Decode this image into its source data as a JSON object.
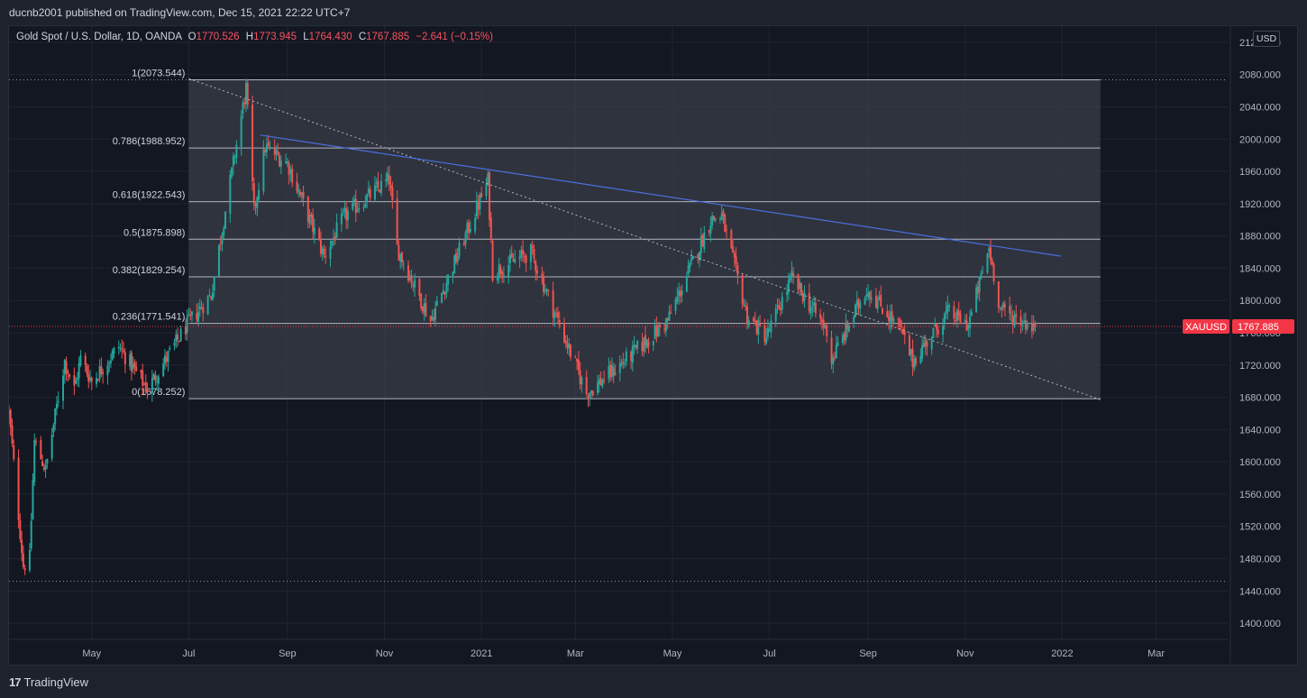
{
  "header": {
    "published_by": "ducnb2001 published on TradingView.com, Dec 15, 2021 22:22 UTC+7"
  },
  "legend": {
    "symbol": "Gold Spot / U.S. Dollar, 1D, OANDA",
    "open_label": "O",
    "open": "1770.526",
    "high_label": "H",
    "high": "1773.945",
    "low_label": "L",
    "low": "1764.430",
    "close_label": "C",
    "close": "1767.885",
    "change": "−2.641 (−0.15%)"
  },
  "price_axis": {
    "currency": "USD",
    "ticker_tag": "XAUUSD",
    "last_price_label": "1767.885"
  },
  "footer": {
    "brand": "TradingView",
    "brand_mark": "17"
  },
  "colors": {
    "background": "#131722",
    "panel": "#1e222d",
    "grid": "#1f2430",
    "up": "#26a69a",
    "down": "#ef5350",
    "trendline": "#4a6fe0",
    "fib_line": "#b2b5be",
    "fib_zone": "#3a3d48",
    "last_price": "#f23645"
  },
  "chart_data": {
    "type": "candlestick",
    "title": "Gold Spot / U.S. Dollar, 1D, OANDA",
    "y_ticks": [
      2120,
      2080,
      2040,
      2000,
      1960,
      1920,
      1880,
      1840,
      1800,
      1760,
      1720,
      1680,
      1640,
      1600,
      1560,
      1520,
      1480,
      1440,
      1400
    ],
    "y_tick_labels": [
      "2120.000",
      "2080.000",
      "2040.000",
      "2000.000",
      "1960.000",
      "1920.000",
      "1880.000",
      "1840.000",
      "1800.000",
      "1760.000",
      "1720.000",
      "1680.000",
      "1640.000",
      "1600.000",
      "1560.000",
      "1520.000",
      "1480.000",
      "1440.000",
      "1400.000"
    ],
    "ylim": [
      1380,
      2140
    ],
    "xlim": [
      "2020-03-10",
      "2022-04-15"
    ],
    "x_ticks": [
      {
        "label": "May",
        "date": "2020-05-01"
      },
      {
        "label": "Jul",
        "date": "2020-07-01"
      },
      {
        "label": "Sep",
        "date": "2020-09-01"
      },
      {
        "label": "Nov",
        "date": "2020-11-01"
      },
      {
        "label": "2021",
        "date": "2021-01-01"
      },
      {
        "label": "Mar",
        "date": "2021-03-01"
      },
      {
        "label": "May",
        "date": "2021-05-01"
      },
      {
        "label": "Jul",
        "date": "2021-07-01"
      },
      {
        "label": "Sep",
        "date": "2021-09-01"
      },
      {
        "label": "Nov",
        "date": "2021-11-01"
      },
      {
        "label": "2022",
        "date": "2022-01-01"
      },
      {
        "label": "Mar",
        "date": "2022-03-01"
      }
    ],
    "fibonacci": {
      "start_date": "2020-07-01",
      "end_date": "2022-01-25",
      "levels": [
        {
          "ratio": "1",
          "price": 2073.544,
          "label": "1(2073.544)"
        },
        {
          "ratio": "0.786",
          "price": 1988.952,
          "label": "0.786(1988.952)"
        },
        {
          "ratio": "0.618",
          "price": 1922.543,
          "label": "0.618(1922.543)"
        },
        {
          "ratio": "0.5",
          "price": 1875.898,
          "label": "0.5(1875.898)"
        },
        {
          "ratio": "0.382",
          "price": 1829.254,
          "label": "0.382(1829.254)"
        },
        {
          "ratio": "0.236",
          "price": 1771.541,
          "label": "0.236(1771.541)"
        },
        {
          "ratio": "0",
          "price": 1678.252,
          "label": "0(1678.252)"
        }
      ]
    },
    "trendline": {
      "start": {
        "date": "2020-08-15",
        "price": 2005
      },
      "end": {
        "date": "2021-12-31",
        "price": 1855
      }
    },
    "diagonal_line": {
      "start": {
        "date": "2020-07-01",
        "price": 2075
      },
      "end": {
        "date": "2022-01-25",
        "price": 1677
      }
    },
    "horizontal_dotted_levels": [
      2073.544,
      1452
    ],
    "last_price": 1767.885,
    "path": [
      [
        "2020-03-10",
        1660
      ],
      [
        "2020-03-19",
        1471
      ],
      [
        "2020-03-23",
        1480
      ],
      [
        "2020-03-26",
        1625
      ],
      [
        "2020-04-02",
        1590
      ],
      [
        "2020-04-14",
        1725
      ],
      [
        "2020-04-20",
        1690
      ],
      [
        "2020-04-24",
        1728
      ],
      [
        "2020-05-01",
        1700
      ],
      [
        "2020-05-18",
        1743
      ],
      [
        "2020-06-05",
        1690
      ],
      [
        "2020-06-30",
        1770
      ],
      [
        "2020-07-15",
        1807
      ],
      [
        "2020-08-06",
        2063
      ],
      [
        "2020-08-11",
        1910
      ],
      [
        "2020-08-18",
        1990
      ],
      [
        "2020-09-01",
        1970
      ],
      [
        "2020-09-24",
        1855
      ],
      [
        "2020-10-07",
        1905
      ],
      [
        "2020-11-04",
        1950
      ],
      [
        "2020-11-09",
        1865
      ],
      [
        "2020-11-30",
        1775
      ],
      [
        "2021-01-05",
        1948
      ],
      [
        "2021-01-08",
        1835
      ],
      [
        "2021-02-01",
        1860
      ],
      [
        "2021-02-26",
        1735
      ],
      [
        "2021-03-08",
        1685
      ],
      [
        "2021-04-01",
        1725
      ],
      [
        "2021-04-28",
        1775
      ],
      [
        "2021-05-25",
        1900
      ],
      [
        "2021-06-01",
        1905
      ],
      [
        "2021-06-17",
        1780
      ],
      [
        "2021-06-29",
        1755
      ],
      [
        "2021-07-15",
        1828
      ],
      [
        "2021-08-06",
        1763
      ],
      [
        "2021-08-09",
        1726
      ],
      [
        "2021-08-31",
        1815
      ],
      [
        "2021-09-21",
        1765
      ],
      [
        "2021-09-29",
        1725
      ],
      [
        "2021-10-21",
        1785
      ],
      [
        "2021-11-03",
        1770
      ],
      [
        "2021-11-16",
        1865
      ],
      [
        "2021-11-23",
        1790
      ],
      [
        "2021-12-01",
        1780
      ],
      [
        "2021-12-15",
        1767.885
      ]
    ]
  }
}
